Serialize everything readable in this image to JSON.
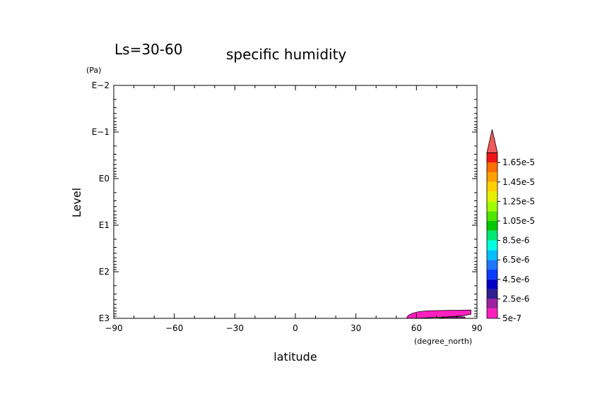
{
  "chart_data": {
    "type": "heatmap",
    "title": "specific humidity",
    "subtitle": "Ls=30-60",
    "xlabel": "latitude",
    "xunit": "(degree_north)",
    "ylabel": "Level",
    "yunit": "(Pa)",
    "xlim": [
      -90,
      90
    ],
    "ylim": [
      0.01,
      1000
    ],
    "yscale": "log",
    "y_inverted": true,
    "grid": false,
    "x_ticks": [
      -90,
      -60,
      -30,
      0,
      30,
      60,
      90
    ],
    "x_tick_labels": [
      "−90",
      "−60",
      "−30",
      "0",
      "30",
      "60",
      "90"
    ],
    "y_ticks": [
      0.01,
      0.1,
      1,
      10,
      100,
      1000
    ],
    "y_tick_labels": [
      "E−2",
      "E−1",
      "E0",
      "E1",
      "E2",
      "E3"
    ],
    "colorbar": {
      "placement": "right",
      "levels": [
        5e-07,
        1.5e-06,
        2.5e-06,
        3.5e-06,
        4.5e-06,
        5.5e-06,
        6.5e-06,
        7.5e-06,
        8.5e-06,
        9.5e-06,
        1.05e-05,
        1.15e-05,
        1.25e-05,
        1.35e-05,
        1.45e-05,
        1.55e-05,
        1.65e-05
      ],
      "colors": [
        "#ff1fbf",
        "#a020a0",
        "#2f1e90",
        "#0000c8",
        "#0a3cff",
        "#1e78ff",
        "#00c0ff",
        "#00ffe0",
        "#00e878",
        "#00c800",
        "#50e600",
        "#a0ff00",
        "#e6f000",
        "#ffd200",
        "#ffa000",
        "#ff6e00",
        "#f01414"
      ],
      "over_color": "#f05a5a",
      "tick_labels": [
        {
          "level": 5e-07,
          "label": "5e-7"
        },
        {
          "level": 2.5e-06,
          "label": "2.5e-6"
        },
        {
          "level": 4.5e-06,
          "label": "4.5e-6"
        },
        {
          "level": 6.5e-06,
          "label": "6.5e-6"
        },
        {
          "level": 8.5e-06,
          "label": "8.5e-6"
        },
        {
          "level": 1.05e-05,
          "label": "1.05e-5"
        },
        {
          "level": 1.25e-05,
          "label": "1.25e-5"
        },
        {
          "level": 1.45e-05,
          "label": "1.45e-5"
        },
        {
          "level": 1.65e-05,
          "label": "1.65e-5"
        }
      ]
    },
    "regions": [
      {
        "level_min": 5e-07,
        "color": "#ff1fbf",
        "outline": [
          [
            55,
            1000
          ],
          [
            56,
            860
          ],
          [
            58,
            780
          ],
          [
            61,
            720
          ],
          [
            65,
            690
          ],
          [
            72,
            680
          ],
          [
            80,
            670
          ],
          [
            87,
            660
          ],
          [
            87,
            820
          ],
          [
            82,
            890
          ],
          [
            75,
            930
          ],
          [
            68,
            960
          ],
          [
            62,
            990
          ],
          [
            58,
            1000
          ]
        ]
      },
      {
        "level_min": 1.5e-06,
        "color": "#a020a0",
        "outline": [
          [
            70,
            1000
          ],
          [
            74,
            950
          ],
          [
            80,
            930
          ],
          [
            84,
            930
          ],
          [
            84,
            1000
          ]
        ]
      }
    ]
  }
}
